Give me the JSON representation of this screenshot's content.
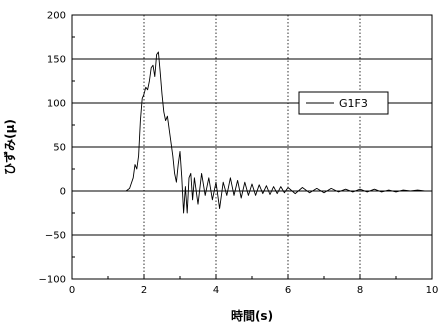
{
  "chart_data": {
    "type": "line",
    "title": "",
    "xlabel": "時間(s)",
    "ylabel": "ひずみ(μ)",
    "xlim": [
      0,
      10
    ],
    "ylim": [
      -100,
      200
    ],
    "x_ticks": [
      0,
      2,
      4,
      6,
      8,
      10
    ],
    "x_tick_labels": [
      "0",
      "2",
      "4",
      "6",
      "8",
      "10"
    ],
    "y_ticks": [
      -100,
      -50,
      0,
      50,
      100,
      150,
      200
    ],
    "y_tick_labels": [
      "−100",
      "−50",
      "0",
      "50",
      "100",
      "150",
      "200"
    ],
    "x_grid": "dotted vertical lines",
    "y_grid": "solid horizontal lines",
    "legend_position": "right",
    "series": [
      {
        "name": "G1F3",
        "color": "#000000",
        "x": [
          0,
          1.5,
          1.6,
          1.7,
          1.75,
          1.8,
          1.85,
          1.9,
          1.95,
          2.0,
          2.05,
          2.1,
          2.15,
          2.2,
          2.25,
          2.3,
          2.35,
          2.4,
          2.45,
          2.5,
          2.55,
          2.6,
          2.65,
          2.7,
          2.75,
          2.8,
          2.85,
          2.9,
          2.95,
          3.0,
          3.05,
          3.1,
          3.15,
          3.2,
          3.25,
          3.3,
          3.35,
          3.4,
          3.5,
          3.6,
          3.7,
          3.8,
          3.9,
          4.0,
          4.1,
          4.2,
          4.3,
          4.4,
          4.5,
          4.6,
          4.7,
          4.8,
          4.9,
          5.0,
          5.1,
          5.2,
          5.3,
          5.4,
          5.5,
          5.6,
          5.7,
          5.8,
          5.9,
          6.0,
          6.2,
          6.4,
          6.6,
          6.8,
          7.0,
          7.2,
          7.4,
          7.6,
          7.8,
          8.0,
          8.2,
          8.4,
          8.6,
          8.8,
          9.0,
          9.2,
          9.4,
          9.6,
          9.8,
          10.0
        ],
        "values": [
          0,
          0,
          3,
          15,
          30,
          25,
          40,
          80,
          105,
          110,
          118,
          115,
          125,
          140,
          143,
          130,
          155,
          158,
          135,
          110,
          90,
          80,
          85,
          70,
          55,
          40,
          20,
          10,
          30,
          45,
          15,
          -25,
          5,
          -25,
          15,
          20,
          -10,
          15,
          -15,
          20,
          -5,
          15,
          -10,
          10,
          -20,
          10,
          -5,
          15,
          -5,
          12,
          -8,
          10,
          -5,
          8,
          -5,
          7,
          -3,
          6,
          -4,
          5,
          -3,
          5,
          -2,
          4,
          -3,
          4,
          -2,
          3,
          -2,
          3,
          -1,
          2,
          -1,
          2,
          -1,
          2,
          -1,
          1,
          -1,
          1,
          0,
          1,
          0,
          0
        ]
      }
    ]
  }
}
